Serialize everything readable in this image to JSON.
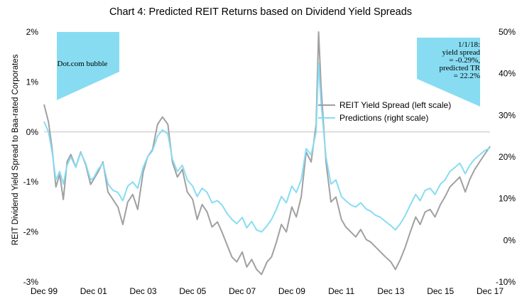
{
  "chart_data": {
    "type": "line",
    "title": "Chart 4: Predicted REIT Returns based on Dividend Yield Spreads",
    "ylabel": "REIT Dividend Yield Spread to Baa-rated Corporates",
    "xlabel": "",
    "x_ticks": [
      "Dec 99",
      "Dec 01",
      "Dec 03",
      "Dec 05",
      "Dec 07",
      "Dec 09",
      "Dec 11",
      "Dec 13",
      "Dec 15",
      "Dec 17"
    ],
    "ylim_left": [
      -3,
      2
    ],
    "ylim_right": [
      -10,
      50
    ],
    "y_ticks_left": [
      "2%",
      "1%",
      "0%",
      "-1%",
      "-2%",
      "-3%"
    ],
    "y_ticks_right": [
      "50%",
      "40%",
      "30%",
      "20%",
      "10%",
      "0%",
      "-10%"
    ],
    "legend_position": "center-right",
    "annotations": [
      {
        "name": "dotcom",
        "lines": [
          "Dot.com bubble"
        ],
        "color": "#88dcf2"
      },
      {
        "name": "latest",
        "lines": [
          "1/1/18:",
          "yield spread",
          "= -0.29%,",
          "predicted TR",
          "= 22.2%"
        ],
        "color": "#88dcf2"
      }
    ],
    "x_range": [
      1999.92,
      2017.92
    ],
    "series": [
      {
        "name": "REIT Yield Spread (left scale)",
        "axis": "left",
        "color": "#a0a0a0",
        "points": [
          [
            1999.92,
            0.55
          ],
          [
            2000.1,
            0.2
          ],
          [
            2000.25,
            -0.35
          ],
          [
            2000.4,
            -1.1
          ],
          [
            2000.55,
            -0.85
          ],
          [
            2000.7,
            -1.35
          ],
          [
            2000.85,
            -0.6
          ],
          [
            2001.0,
            -0.45
          ],
          [
            2001.2,
            -0.7
          ],
          [
            2001.4,
            -0.4
          ],
          [
            2001.6,
            -0.65
          ],
          [
            2001.8,
            -1.05
          ],
          [
            2001.92,
            -0.95
          ],
          [
            2002.1,
            -0.8
          ],
          [
            2002.3,
            -0.6
          ],
          [
            2002.5,
            -1.2
          ],
          [
            2002.7,
            -1.35
          ],
          [
            2002.9,
            -1.5
          ],
          [
            2003.1,
            -1.85
          ],
          [
            2003.3,
            -1.4
          ],
          [
            2003.5,
            -1.25
          ],
          [
            2003.7,
            -1.55
          ],
          [
            2003.92,
            -0.8
          ],
          [
            2004.1,
            -0.5
          ],
          [
            2004.3,
            -0.35
          ],
          [
            2004.5,
            0.15
          ],
          [
            2004.7,
            0.3
          ],
          [
            2004.92,
            0.15
          ],
          [
            2005.1,
            -0.6
          ],
          [
            2005.3,
            -0.9
          ],
          [
            2005.5,
            -0.75
          ],
          [
            2005.7,
            -1.2
          ],
          [
            2005.92,
            -1.35
          ],
          [
            2006.1,
            -1.75
          ],
          [
            2006.3,
            -1.45
          ],
          [
            2006.5,
            -1.6
          ],
          [
            2006.7,
            -1.9
          ],
          [
            2006.92,
            -1.8
          ],
          [
            2007.1,
            -2.0
          ],
          [
            2007.3,
            -2.25
          ],
          [
            2007.5,
            -2.5
          ],
          [
            2007.7,
            -2.6
          ],
          [
            2007.92,
            -2.4
          ],
          [
            2008.1,
            -2.7
          ],
          [
            2008.3,
            -2.55
          ],
          [
            2008.5,
            -2.75
          ],
          [
            2008.7,
            -2.85
          ],
          [
            2008.92,
            -2.6
          ],
          [
            2009.1,
            -2.5
          ],
          [
            2009.3,
            -2.2
          ],
          [
            2009.5,
            -1.85
          ],
          [
            2009.7,
            -2.0
          ],
          [
            2009.92,
            -1.5
          ],
          [
            2010.1,
            -1.7
          ],
          [
            2010.3,
            -1.3
          ],
          [
            2010.5,
            -0.4
          ],
          [
            2010.7,
            -0.6
          ],
          [
            2010.9,
            0.15
          ],
          [
            2011.0,
            2.0
          ],
          [
            2011.1,
            0.9
          ],
          [
            2011.3,
            -0.6
          ],
          [
            2011.5,
            -1.4
          ],
          [
            2011.7,
            -1.3
          ],
          [
            2011.92,
            -1.75
          ],
          [
            2012.1,
            -1.9
          ],
          [
            2012.3,
            -2.0
          ],
          [
            2012.5,
            -2.1
          ],
          [
            2012.7,
            -1.95
          ],
          [
            2012.92,
            -2.15
          ],
          [
            2013.1,
            -2.2
          ],
          [
            2013.3,
            -2.3
          ],
          [
            2013.5,
            -2.4
          ],
          [
            2013.7,
            -2.5
          ],
          [
            2013.92,
            -2.6
          ],
          [
            2014.1,
            -2.75
          ],
          [
            2014.3,
            -2.55
          ],
          [
            2014.5,
            -2.3
          ],
          [
            2014.7,
            -2.0
          ],
          [
            2014.92,
            -1.7
          ],
          [
            2015.1,
            -1.85
          ],
          [
            2015.3,
            -1.6
          ],
          [
            2015.5,
            -1.55
          ],
          [
            2015.7,
            -1.7
          ],
          [
            2015.92,
            -1.45
          ],
          [
            2016.1,
            -1.3
          ],
          [
            2016.3,
            -1.1
          ],
          [
            2016.5,
            -1.0
          ],
          [
            2016.7,
            -0.9
          ],
          [
            2016.92,
            -1.2
          ],
          [
            2017.1,
            -0.95
          ],
          [
            2017.3,
            -0.75
          ],
          [
            2017.5,
            -0.6
          ],
          [
            2017.7,
            -0.45
          ],
          [
            2017.92,
            -0.29
          ]
        ]
      },
      {
        "name": "Predictions (right scale)",
        "axis": "right",
        "color": "#88dcf2",
        "points": [
          [
            1999.92,
            28.5
          ],
          [
            2000.1,
            26.0
          ],
          [
            2000.25,
            21.0
          ],
          [
            2000.4,
            14.5
          ],
          [
            2000.55,
            16.5
          ],
          [
            2000.7,
            13.5
          ],
          [
            2000.85,
            18.0
          ],
          [
            2001.0,
            20.0
          ],
          [
            2001.2,
            17.5
          ],
          [
            2001.4,
            21.0
          ],
          [
            2001.6,
            18.5
          ],
          [
            2001.8,
            14.5
          ],
          [
            2001.92,
            15.0
          ],
          [
            2002.1,
            17.0
          ],
          [
            2002.3,
            18.5
          ],
          [
            2002.5,
            13.5
          ],
          [
            2002.7,
            12.0
          ],
          [
            2002.9,
            11.5
          ],
          [
            2003.1,
            9.5
          ],
          [
            2003.3,
            13.0
          ],
          [
            2003.5,
            14.0
          ],
          [
            2003.7,
            12.5
          ],
          [
            2003.92,
            17.5
          ],
          [
            2004.1,
            20.0
          ],
          [
            2004.3,
            21.5
          ],
          [
            2004.5,
            25.0
          ],
          [
            2004.7,
            26.5
          ],
          [
            2004.92,
            25.5
          ],
          [
            2005.1,
            19.5
          ],
          [
            2005.3,
            16.5
          ],
          [
            2005.5,
            18.0
          ],
          [
            2005.7,
            14.5
          ],
          [
            2005.92,
            13.0
          ],
          [
            2006.1,
            10.5
          ],
          [
            2006.3,
            12.5
          ],
          [
            2006.5,
            11.5
          ],
          [
            2006.7,
            9.0
          ],
          [
            2006.92,
            9.5
          ],
          [
            2007.1,
            8.5
          ],
          [
            2007.3,
            6.5
          ],
          [
            2007.5,
            5.0
          ],
          [
            2007.7,
            4.0
          ],
          [
            2007.92,
            5.5
          ],
          [
            2008.1,
            3.0
          ],
          [
            2008.3,
            4.5
          ],
          [
            2008.5,
            2.5
          ],
          [
            2008.7,
            2.0
          ],
          [
            2008.92,
            3.5
          ],
          [
            2009.1,
            5.0
          ],
          [
            2009.3,
            7.5
          ],
          [
            2009.5,
            10.5
          ],
          [
            2009.7,
            9.0
          ],
          [
            2009.92,
            13.0
          ],
          [
            2010.1,
            11.5
          ],
          [
            2010.3,
            14.5
          ],
          [
            2010.5,
            22.0
          ],
          [
            2010.7,
            20.5
          ],
          [
            2010.9,
            26.0
          ],
          [
            2011.0,
            42.5
          ],
          [
            2011.1,
            33.0
          ],
          [
            2011.3,
            20.0
          ],
          [
            2011.5,
            13.5
          ],
          [
            2011.7,
            14.5
          ],
          [
            2011.92,
            10.5
          ],
          [
            2012.1,
            9.5
          ],
          [
            2012.3,
            8.5
          ],
          [
            2012.5,
            8.0
          ],
          [
            2012.7,
            9.0
          ],
          [
            2012.92,
            7.5
          ],
          [
            2013.1,
            7.0
          ],
          [
            2013.3,
            6.0
          ],
          [
            2013.5,
            5.5
          ],
          [
            2013.7,
            4.5
          ],
          [
            2013.92,
            3.5
          ],
          [
            2014.1,
            2.5
          ],
          [
            2014.3,
            4.0
          ],
          [
            2014.5,
            6.0
          ],
          [
            2014.7,
            8.5
          ],
          [
            2014.92,
            11.0
          ],
          [
            2015.1,
            9.5
          ],
          [
            2015.3,
            12.0
          ],
          [
            2015.5,
            12.5
          ],
          [
            2015.7,
            11.0
          ],
          [
            2015.92,
            13.5
          ],
          [
            2016.1,
            14.5
          ],
          [
            2016.3,
            16.5
          ],
          [
            2016.5,
            17.5
          ],
          [
            2016.7,
            18.5
          ],
          [
            2016.92,
            16.0
          ],
          [
            2017.1,
            18.0
          ],
          [
            2017.3,
            19.5
          ],
          [
            2017.5,
            20.5
          ],
          [
            2017.7,
            21.5
          ],
          [
            2017.92,
            22.2
          ]
        ]
      }
    ]
  }
}
